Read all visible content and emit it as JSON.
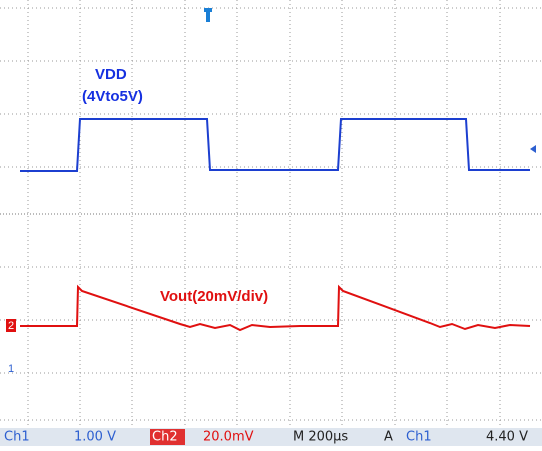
{
  "screen": {
    "labels": {
      "vdd": "VDD",
      "vdd_range": "(4Vto5V)",
      "vout": "Vout(20mV/div)"
    },
    "markers": {
      "ch2": "2",
      "ch1": "1"
    },
    "status": {
      "ch1": "Ch1",
      "ch1_scale": "1.00 V",
      "ch2": "Ch2",
      "ch2_scale": "20.0mV",
      "time": "M 200µs",
      "mode": "A",
      "trig_src": "Ch1",
      "trig_level": "4.40 V"
    }
  }
}
